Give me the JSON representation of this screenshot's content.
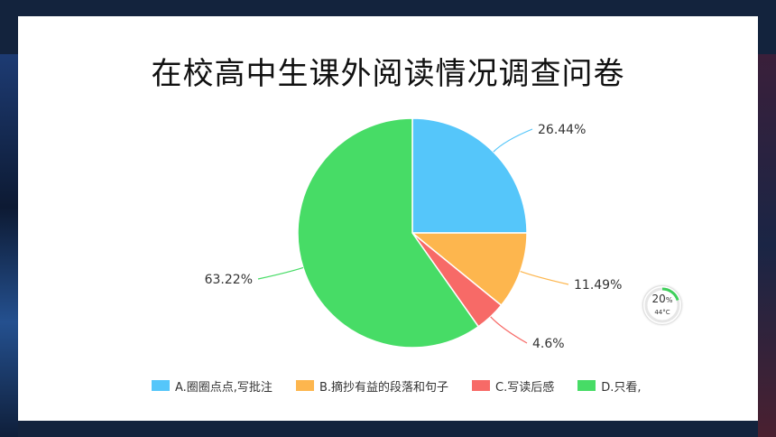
{
  "slide": {
    "title": "在校高中生课外阅读情况调查问卷"
  },
  "chart_data": {
    "type": "pie",
    "title": "",
    "categories": [
      "A.圈圈点点,写批注",
      "B.摘抄有益的段落和句子",
      "C.写读后感",
      "D.只看,"
    ],
    "values": [
      26.44,
      11.49,
      4.6,
      63.22
    ],
    "data_labels": [
      "26.44%",
      "11.49%",
      "4.6%",
      "63.22%"
    ],
    "colors": [
      "#55c6fa",
      "#fdb64e",
      "#f76a67",
      "#47dc66"
    ],
    "legend_position": "bottom",
    "start_angle": "top",
    "direction": "clockwise"
  },
  "widget": {
    "percent": "20",
    "percent_unit": "%",
    "temperature": "44°C",
    "level": 0.2,
    "color": "#3ecf5b"
  }
}
